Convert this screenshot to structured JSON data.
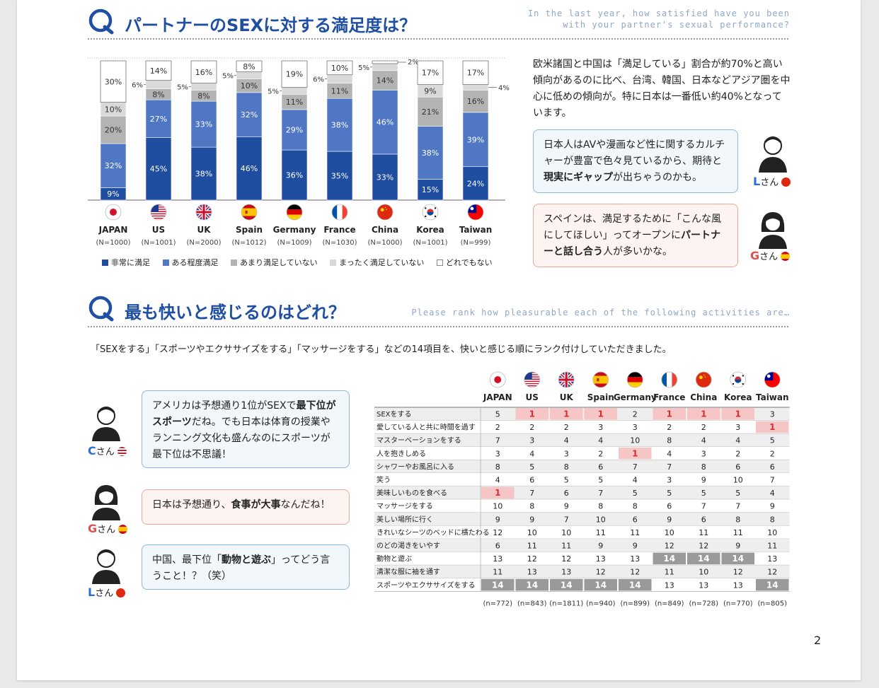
{
  "section1": {
    "title": "パートナーのSEXに対する満足度は？",
    "subtitle_line1": "In the last year, how satisfied have you been",
    "subtitle_line2": "with your partner's sexual performance?"
  },
  "chart_data": [
    {
      "type": "bar",
      "stacked": true,
      "unit": "%",
      "categories": [
        "JAPAN",
        "US",
        "UK",
        "Spain",
        "Germany",
        "France",
        "China",
        "Korea",
        "Taiwan"
      ],
      "sample_sizes": [
        "(N=1000)",
        "(N=1001)",
        "(N=2000)",
        "(N=1012)",
        "(N=1009)",
        "(N=1030)",
        "(N=1000)",
        "(N=1001)",
        "(N=999)"
      ],
      "series": [
        {
          "name": "非常に満足",
          "color": "#1f4ea1",
          "values": [
            9,
            45,
            38,
            46,
            36,
            35,
            33,
            15,
            24
          ]
        },
        {
          "name": "ある程度満足",
          "color": "#4f77c4",
          "values": [
            32,
            27,
            33,
            32,
            29,
            38,
            46,
            38,
            39
          ]
        },
        {
          "name": "あまり満足していない",
          "color": "#b3b3b3",
          "values": [
            20,
            8,
            8,
            10,
            11,
            11,
            14,
            21,
            16
          ]
        },
        {
          "name": "まったく満足していない",
          "color": "#d9d9d9",
          "values": [
            10,
            6,
            5,
            5,
            5,
            6,
            5,
            9,
            4
          ]
        },
        {
          "name": "どれでもない",
          "color": "#ffffff",
          "values": [
            30,
            14,
            16,
            8,
            19,
            10,
            2,
            17,
            17
          ]
        }
      ],
      "label_texts": [
        [
          "9%",
          "32%",
          "20%",
          "10%",
          "30%"
        ],
        [
          "45%",
          "27%",
          "8%",
          "6%",
          "14%"
        ],
        [
          "38%",
          "33%",
          "8%",
          "5%",
          "16%"
        ],
        [
          "46%",
          "32%",
          "10%",
          "5%",
          "8%"
        ],
        [
          "36%",
          "29%",
          "11%",
          "5%",
          "19%"
        ],
        [
          "35%",
          "38%",
          "11%",
          "6%",
          "10%"
        ],
        [
          "33%",
          "46%",
          "14%",
          "5%",
          "2%"
        ],
        [
          "15%",
          "38%",
          "21%",
          "9%",
          "17%"
        ],
        [
          "24%",
          "39%",
          "16%",
          "4%",
          "17%"
        ]
      ],
      "ylim": [
        0,
        100
      ]
    },
    {
      "type": "table",
      "title": "最も快いと感じるのはどれ？",
      "columns": [
        "JAPAN",
        "US",
        "UK",
        "Spain",
        "Germany",
        "France",
        "China",
        "Korea",
        "Taiwan"
      ],
      "rows": [
        {
          "label": "SEXをする",
          "values": [
            5,
            1,
            1,
            1,
            2,
            1,
            1,
            1,
            3
          ]
        },
        {
          "label": "愛している人と共に時間を過す",
          "values": [
            2,
            2,
            2,
            3,
            3,
            2,
            2,
            3,
            1
          ]
        },
        {
          "label": "マスターベーションをする",
          "values": [
            7,
            3,
            4,
            4,
            10,
            8,
            4,
            4,
            5
          ]
        },
        {
          "label": "人を抱きしめる",
          "values": [
            3,
            4,
            3,
            2,
            1,
            4,
            3,
            2,
            2
          ]
        },
        {
          "label": "シャワーやお風呂に入る",
          "values": [
            8,
            5,
            8,
            6,
            7,
            7,
            8,
            6,
            6
          ]
        },
        {
          "label": "笑う",
          "values": [
            4,
            6,
            5,
            5,
            4,
            3,
            9,
            10,
            7
          ]
        },
        {
          "label": "美味しいものを食べる",
          "values": [
            1,
            7,
            6,
            7,
            5,
            5,
            5,
            5,
            4
          ]
        },
        {
          "label": "マッサージをする",
          "values": [
            10,
            8,
            9,
            8,
            8,
            6,
            7,
            7,
            9
          ]
        },
        {
          "label": "美しい場所に行く",
          "values": [
            9,
            9,
            7,
            10,
            6,
            9,
            6,
            8,
            8
          ]
        },
        {
          "label": "きれいなシーツのベッドに横たわる",
          "values": [
            12,
            10,
            10,
            11,
            11,
            10,
            11,
            11,
            10
          ]
        },
        {
          "label": "のどの渇きをいやす",
          "values": [
            6,
            11,
            11,
            9,
            9,
            12,
            12,
            9,
            11
          ]
        },
        {
          "label": "動物と遊ぶ",
          "values": [
            13,
            12,
            12,
            13,
            13,
            14,
            14,
            14,
            13
          ]
        },
        {
          "label": "清潔な服に袖を通す",
          "values": [
            11,
            13,
            13,
            12,
            12,
            11,
            10,
            12,
            12
          ]
        },
        {
          "label": "スポーツやエクササイズをする",
          "values": [
            14,
            14,
            14,
            14,
            14,
            13,
            13,
            13,
            14
          ]
        }
      ],
      "sample_sizes": [
        "(n=772)",
        "(n=843)",
        "(n=1811)",
        "(n=940)",
        "(n=899)",
        "(n=849)",
        "(n=728)",
        "(n=770)",
        "(n=805)"
      ]
    }
  ],
  "legend": [
    "非常に満足",
    "ある程度満足",
    "あまり満足していない",
    "まったく満足していない",
    "どれでもない"
  ],
  "paragraph1": "欧米諸国と中国は「満足している」割合が約70%と高い傾向があるのに比べ、台湾、韓国、日本などアジア圏を中心に低めの傾向が。特に日本は一番低い約40%となっています。",
  "bubble_L1": {
    "p1": "日本人はAVや漫画など性に関するカルチャーが豊富で色々見ているから、期待と",
    "bold": "現実にギャップ",
    "p2": "が出ちゃうのかも。"
  },
  "bubble_G1": {
    "p1": "スペインは、満足するために「こんな風にしてほしい」ってオープンに",
    "bold": "パートナーと話し合う",
    "p2": "人が多いかな。"
  },
  "section2": {
    "title": "最も快いと感じるのはどれ？",
    "subtitle": "Please rank how pleasurable each of the following activities are…",
    "intro": "「SEXをする」「スポーツやエクササイズをする」「マッサージをする」などの14項目を、快いと感じる順にランク付けしていただきました。"
  },
  "bubble_C": {
    "p1": "アメリカは予想通り1位がSEXで",
    "bold1": "最下位がスポーツ",
    "p2": "だね。でも日本は体育の授業やランニング文化も盛んなのにスポーツが最下位は不思議！"
  },
  "bubble_G2": {
    "p1": "日本は予想通り、",
    "bold": "食事が大事",
    "p2": "なんだね！"
  },
  "bubble_L2": {
    "p1": "中国、最下位「",
    "bold": "動物と遊ぶ",
    "p2": "」ってどう言うこと！？（笑）"
  },
  "persons": {
    "L": {
      "letter": "L",
      "suffix": "さん"
    },
    "G": {
      "letter": "G",
      "suffix": "さん"
    },
    "C": {
      "letter": "C",
      "suffix": "さん"
    }
  },
  "page_number": "2",
  "colors": {
    "accent": "#1e4fa3",
    "highlight_red": "#f6c6c6",
    "highlight_gray": "#9a9a9a"
  }
}
